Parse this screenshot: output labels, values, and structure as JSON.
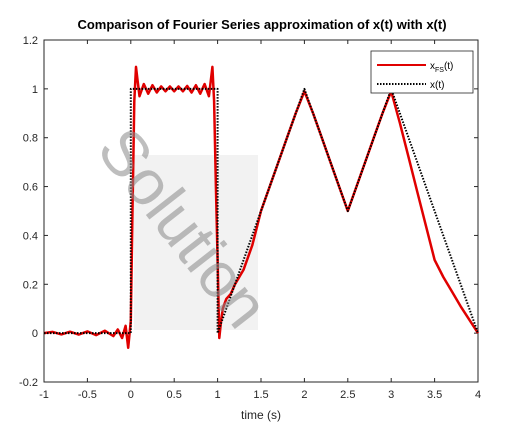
{
  "chart_data": {
    "type": "line",
    "title": "Comparison of Fourier Series approximation of x(t) with x(t)",
    "xlabel": "time (s)",
    "ylabel": "",
    "xlim": [
      -1,
      4
    ],
    "ylim": [
      -0.2,
      1.2
    ],
    "xticks": [
      -1,
      -0.5,
      0,
      0.5,
      1,
      1.5,
      2,
      2.5,
      3,
      3.5,
      4
    ],
    "xtick_labels": [
      "-1",
      "-0.5",
      "0",
      "0.5",
      "1",
      "1.5",
      "2",
      "2.5",
      "3",
      "3.5",
      "4"
    ],
    "yticks": [
      -0.2,
      0,
      0.2,
      0.4,
      0.6,
      0.8,
      1,
      1.2
    ],
    "ytick_labels": [
      "-0.2",
      "0",
      "0.2",
      "0.4",
      "0.6",
      "0.8",
      "1",
      "1.2"
    ],
    "grid": false,
    "legend_position": "top-right",
    "legend": [
      {
        "base": "x",
        "sub": "FS",
        "suffix": "(t)",
        "color": "#e00000",
        "style": "solid"
      },
      {
        "base": "x(t)",
        "sub": "",
        "suffix": "",
        "color": "#000000",
        "style": "dotted"
      }
    ],
    "series": [
      {
        "name": "xFS(t)",
        "color": "#e00000",
        "style": "solid",
        "x": [
          -1,
          -0.9,
          -0.8,
          -0.7,
          -0.6,
          -0.5,
          -0.4,
          -0.3,
          -0.2,
          -0.15,
          -0.1,
          -0.06,
          -0.03,
          0,
          0.02,
          0.04,
          0.06,
          0.08,
          0.1,
          0.15,
          0.2,
          0.25,
          0.3,
          0.35,
          0.4,
          0.45,
          0.5,
          0.55,
          0.6,
          0.65,
          0.7,
          0.75,
          0.8,
          0.85,
          0.9,
          0.92,
          0.94,
          0.96,
          0.98,
          1,
          1.02,
          1.04,
          1.06,
          1.08,
          1.1,
          1.15,
          1.2,
          1.3,
          1.4,
          1.5,
          1.6,
          1.7,
          1.8,
          1.9,
          2,
          2.1,
          2.2,
          2.3,
          2.4,
          2.5,
          2.6,
          2.7,
          2.8,
          2.9,
          3,
          3.1,
          3.2,
          3.3,
          3.4,
          3.5,
          3.6,
          3.7,
          3.8,
          3.9,
          4
        ],
        "y": [
          0,
          0.005,
          -0.005,
          0.006,
          -0.006,
          0.007,
          -0.008,
          0.01,
          -0.012,
          0.015,
          -0.02,
          0.03,
          -0.06,
          0.05,
          0.5,
          0.95,
          1.09,
          1.03,
          0.97,
          1.02,
          0.98,
          1.015,
          0.985,
          1.01,
          0.99,
          1.01,
          0.99,
          1.01,
          0.99,
          1.012,
          0.985,
          1.015,
          0.98,
          1.02,
          0.97,
          1.03,
          1.09,
          0.95,
          0.6,
          0.3,
          -0.02,
          0.05,
          0.1,
          0.12,
          0.14,
          0.16,
          0.2,
          0.26,
          0.36,
          0.5,
          0.6,
          0.7,
          0.8,
          0.9,
          0.99,
          0.9,
          0.8,
          0.7,
          0.6,
          0.5,
          0.6,
          0.7,
          0.8,
          0.9,
          0.99,
          0.86,
          0.72,
          0.58,
          0.44,
          0.3,
          0.23,
          0.17,
          0.11,
          0.055,
          0.0
        ]
      },
      {
        "name": "x(t)",
        "color": "#000000",
        "style": "dotted",
        "x": [
          -1,
          0,
          0,
          1,
          1,
          1.5,
          2,
          2.5,
          3,
          3.5,
          4
        ],
        "y": [
          0,
          0,
          1,
          1,
          0,
          0.5,
          1,
          0.5,
          1,
          0.5,
          0
        ]
      }
    ]
  },
  "watermark": {
    "text": "Solution"
  }
}
